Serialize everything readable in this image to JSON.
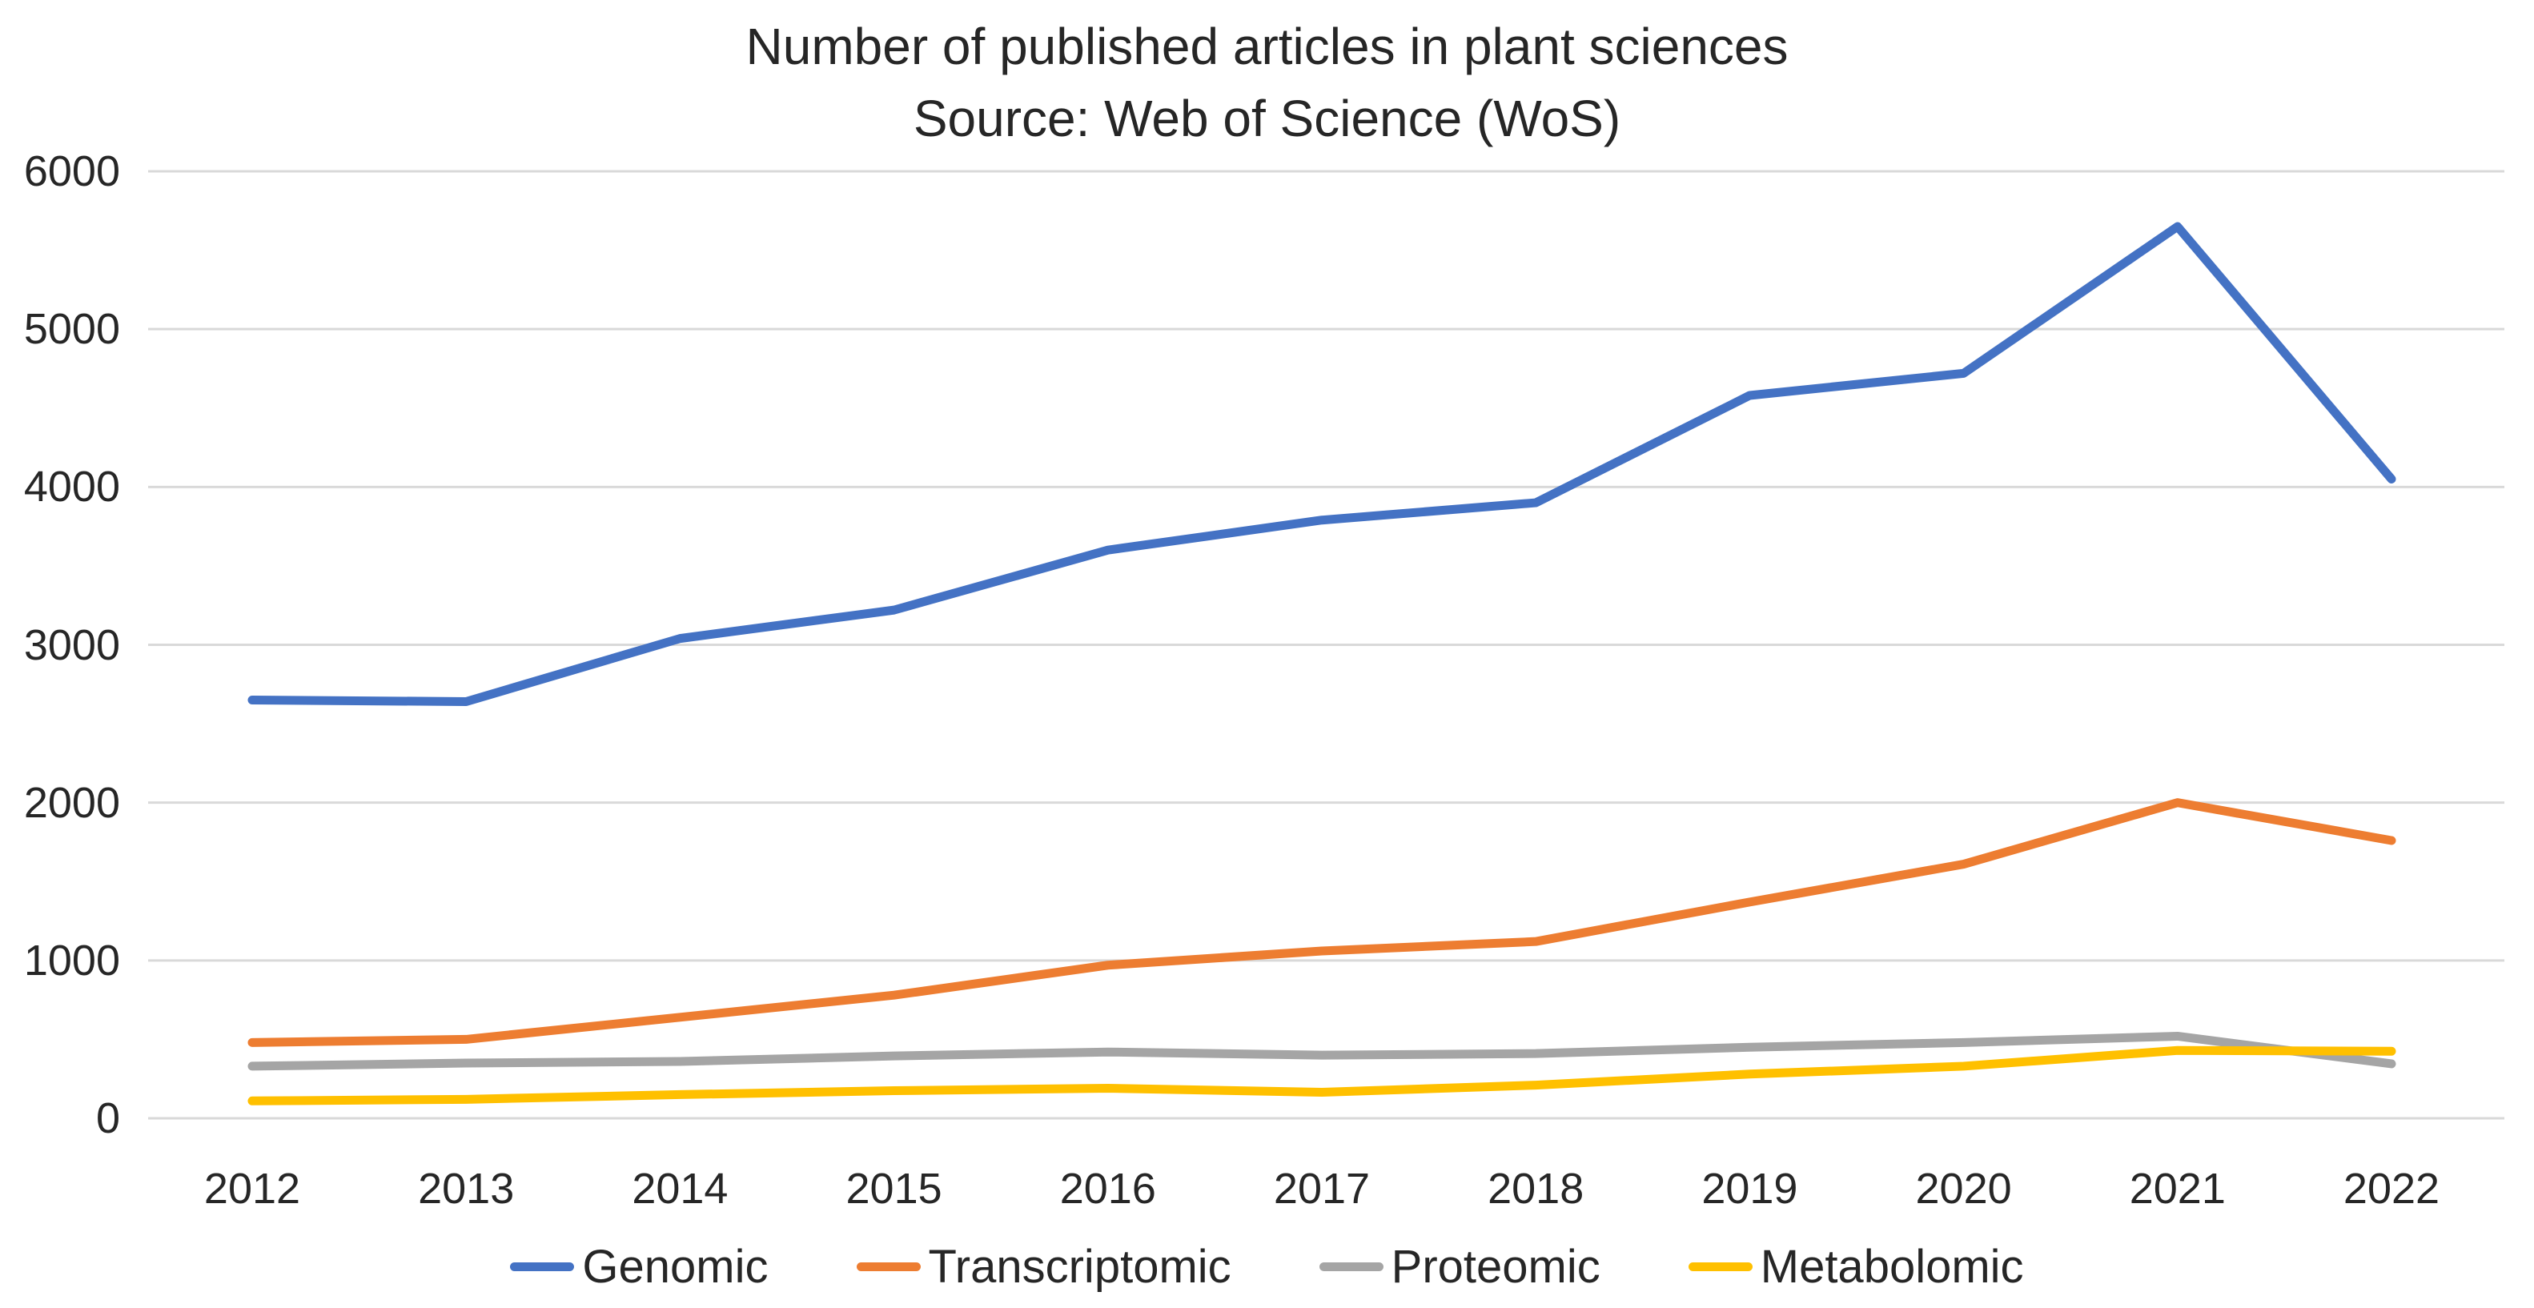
{
  "chart_data": {
    "type": "line",
    "title": "Number of published articles in plant sciences",
    "subtitle": "Source: Web of Science (WoS)",
    "categories": [
      "2012",
      "2013",
      "2014",
      "2015",
      "2016",
      "2017",
      "2018",
      "2019",
      "2020",
      "2021",
      "2022"
    ],
    "series": [
      {
        "name": "Genomic",
        "color": "#4472C4",
        "values": [
          2650,
          2640,
          3040,
          3220,
          3600,
          3790,
          3900,
          4580,
          4720,
          5650,
          4050
        ]
      },
      {
        "name": "Transcriptomic",
        "color": "#ED7D31",
        "values": [
          480,
          500,
          640,
          780,
          970,
          1060,
          1120,
          1370,
          1610,
          2000,
          1760
        ]
      },
      {
        "name": "Proteomic",
        "color": "#A5A5A5",
        "values": [
          330,
          350,
          360,
          395,
          420,
          400,
          410,
          450,
          480,
          520,
          345
        ]
      },
      {
        "name": "Metabolomic",
        "color": "#FFC000",
        "values": [
          110,
          120,
          150,
          175,
          190,
          165,
          210,
          280,
          330,
          430,
          425
        ]
      }
    ],
    "xlabel": "",
    "ylabel": "",
    "ylim": [
      0,
      6000
    ],
    "yticks": [
      0,
      1000,
      2000,
      3000,
      4000,
      5000,
      6000
    ],
    "grid": "horizontal",
    "grid_color": "#d9d9d9",
    "text_color": "#262626",
    "legend_position": "bottom"
  }
}
